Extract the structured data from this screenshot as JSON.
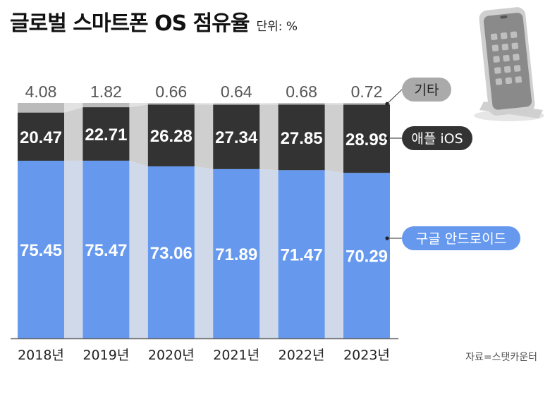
{
  "header": {
    "title": "글로벌 스마트폰 OS 점유율",
    "unit": "단위: %"
  },
  "source": "자료=스탯카운터",
  "colors": {
    "android": "#6699ee",
    "ios": "#333333",
    "other": "#bbbbbb",
    "connector": "#cfd9ea"
  },
  "chart_data": {
    "type": "bar",
    "stacked": true,
    "title": "글로벌 스마트폰 OS 점유율",
    "unit": "단위: %",
    "categories": [
      "2018년",
      "2019년",
      "2020년",
      "2021년",
      "2022년",
      "2023년"
    ],
    "series": [
      {
        "name": "구글 안드로이드",
        "values": [
          75.45,
          75.47,
          73.06,
          71.89,
          71.47,
          70.29
        ]
      },
      {
        "name": "애플 iOS",
        "values": [
          20.47,
          22.71,
          26.28,
          27.34,
          27.85,
          28.99
        ]
      },
      {
        "name": "기타",
        "values": [
          4.08,
          1.82,
          0.66,
          0.64,
          0.68,
          0.72
        ]
      }
    ],
    "ylim": [
      0,
      100
    ],
    "grid": false,
    "legend": "right"
  }
}
